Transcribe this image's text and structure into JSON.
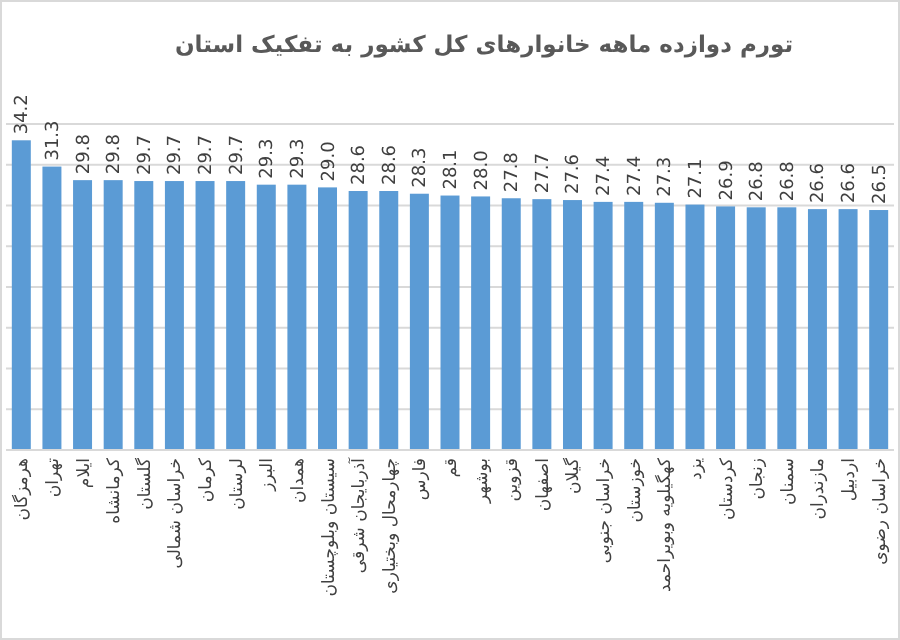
{
  "chart_data": {
    "type": "bar",
    "title": "تورم دوازده ماهه خانوارهای کل کشور به تفکیک استان",
    "categories": [
      "هرمزگان",
      "تهران",
      "ایلام",
      "کرمانشاه",
      "گلستان",
      "خراسان شمالی",
      "کرمان",
      "لرستان",
      "البرز",
      "همدان",
      "سیستان وبلوچستان",
      "آذربایجان شرقی",
      "چهارمحال وبختیاری",
      "فارس",
      "قم",
      "بوشهر",
      "قزوین",
      "اصفهان",
      "گیلان",
      "خراسان جنوبی",
      "خوزستان",
      "کهگیلویه وبویراحمد",
      "یزد",
      "کردستان",
      "زنجان",
      "سمنان",
      "مازندران",
      "اردبیل",
      "خراسان رضوی"
    ],
    "values": [
      34.2,
      31.3,
      29.8,
      29.8,
      29.7,
      29.7,
      29.7,
      29.7,
      29.3,
      29.3,
      29.0,
      28.6,
      28.6,
      28.3,
      28.1,
      28.0,
      27.8,
      27.7,
      27.6,
      27.4,
      27.4,
      27.3,
      27.1,
      26.9,
      26.8,
      26.8,
      26.6,
      26.6,
      26.5
    ],
    "value_labels": [
      "34.2",
      "31.3",
      "29.8",
      "29.8",
      "29.7",
      "29.7",
      "29.7",
      "29.7",
      "29.3",
      "29.3",
      "29.0",
      "28.6",
      "28.6",
      "28.3",
      "28.1",
      "28.0",
      "27.8",
      "27.7",
      "27.6",
      "27.4",
      "27.4",
      "27.3",
      "27.1",
      "26.9",
      "26.8",
      "26.8",
      "26.6",
      "26.6",
      "26.5"
    ],
    "color": "#5b9bd5",
    "grid": "y",
    "tick_labels": "x",
    "ylim": [
      0,
      36
    ],
    "yticks": [
      {
        "value": 0,
        "label": null
      },
      {
        "value": 4.5,
        "label": null
      },
      {
        "value": 9,
        "label": null
      },
      {
        "value": 13.5,
        "label": null
      },
      {
        "value": 18,
        "label": null
      },
      {
        "value": 22.5,
        "label": null
      },
      {
        "value": 27,
        "label": null
      },
      {
        "value": 31.5,
        "label": null
      },
      {
        "value": 36,
        "label": null
      }
    ]
  }
}
